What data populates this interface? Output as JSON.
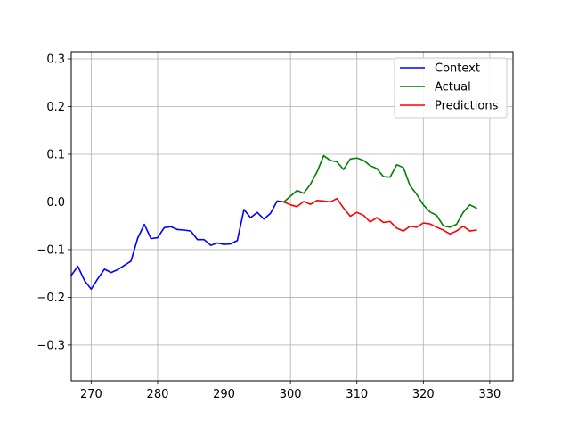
{
  "chart_data": {
    "type": "line",
    "title": "",
    "xlabel": "",
    "ylabel": "",
    "xlim": [
      267,
      333.5
    ],
    "ylim": [
      -0.375,
      0.315
    ],
    "grid": true,
    "legend_position": "top-right",
    "x_ticks": [
      270,
      280,
      290,
      300,
      310,
      320,
      330
    ],
    "y_ticks": [
      -0.3,
      -0.2,
      -0.1,
      0.0,
      0.1,
      0.2,
      0.3
    ],
    "x_tick_labels": [
      "270",
      "280",
      "290",
      "300",
      "310",
      "320",
      "330"
    ],
    "y_tick_labels": [
      "−0.3",
      "−0.2",
      "−0.1",
      "0.0",
      "0.1",
      "0.2",
      "0.3"
    ],
    "series": [
      {
        "name": "Context",
        "color": "#0000ff",
        "x": [
          267,
          268,
          269,
          270,
          271,
          272,
          273,
          274,
          275,
          276,
          277,
          278,
          279,
          280,
          281,
          282,
          283,
          284,
          285,
          286,
          287,
          288,
          289,
          290,
          291,
          292,
          293,
          294,
          295,
          296,
          297,
          298,
          299
        ],
        "y": [
          -0.154,
          -0.135,
          -0.165,
          -0.183,
          -0.161,
          -0.141,
          -0.148,
          -0.142,
          -0.133,
          -0.124,
          -0.076,
          -0.047,
          -0.077,
          -0.075,
          -0.054,
          -0.052,
          -0.058,
          -0.059,
          -0.061,
          -0.079,
          -0.079,
          -0.091,
          -0.086,
          -0.089,
          -0.088,
          -0.081,
          -0.016,
          -0.033,
          -0.022,
          -0.036,
          -0.024,
          0.002,
          0.0
        ]
      },
      {
        "name": "Actual",
        "color": "#008000",
        "x": [
          299,
          300,
          301,
          302,
          303,
          304,
          305,
          306,
          307,
          308,
          309,
          310,
          311,
          312,
          313,
          314,
          315,
          316,
          317,
          318,
          319,
          320,
          321,
          322,
          323,
          324,
          325,
          326,
          327,
          328
        ],
        "y": [
          0.0,
          0.012,
          0.024,
          0.018,
          0.037,
          0.063,
          0.097,
          0.087,
          0.084,
          0.068,
          0.09,
          0.092,
          0.087,
          0.076,
          0.07,
          0.053,
          0.052,
          0.078,
          0.072,
          0.034,
          0.016,
          -0.006,
          -0.021,
          -0.028,
          -0.05,
          -0.053,
          -0.047,
          -0.022,
          -0.006,
          -0.013
        ]
      },
      {
        "name": "Predictions",
        "color": "#ff0000",
        "x": [
          299,
          300,
          301,
          302,
          303,
          304,
          305,
          306,
          307,
          308,
          309,
          310,
          311,
          312,
          313,
          314,
          315,
          316,
          317,
          318,
          319,
          320,
          321,
          322,
          323,
          324,
          325,
          326,
          327,
          328
        ],
        "y": [
          0.0,
          -0.006,
          -0.01,
          0.001,
          -0.005,
          0.003,
          0.002,
          0.0,
          0.007,
          -0.013,
          -0.03,
          -0.022,
          -0.028,
          -0.042,
          -0.033,
          -0.043,
          -0.041,
          -0.055,
          -0.061,
          -0.051,
          -0.053,
          -0.044,
          -0.046,
          -0.053,
          -0.059,
          -0.067,
          -0.061,
          -0.051,
          -0.061,
          -0.059
        ]
      }
    ]
  }
}
